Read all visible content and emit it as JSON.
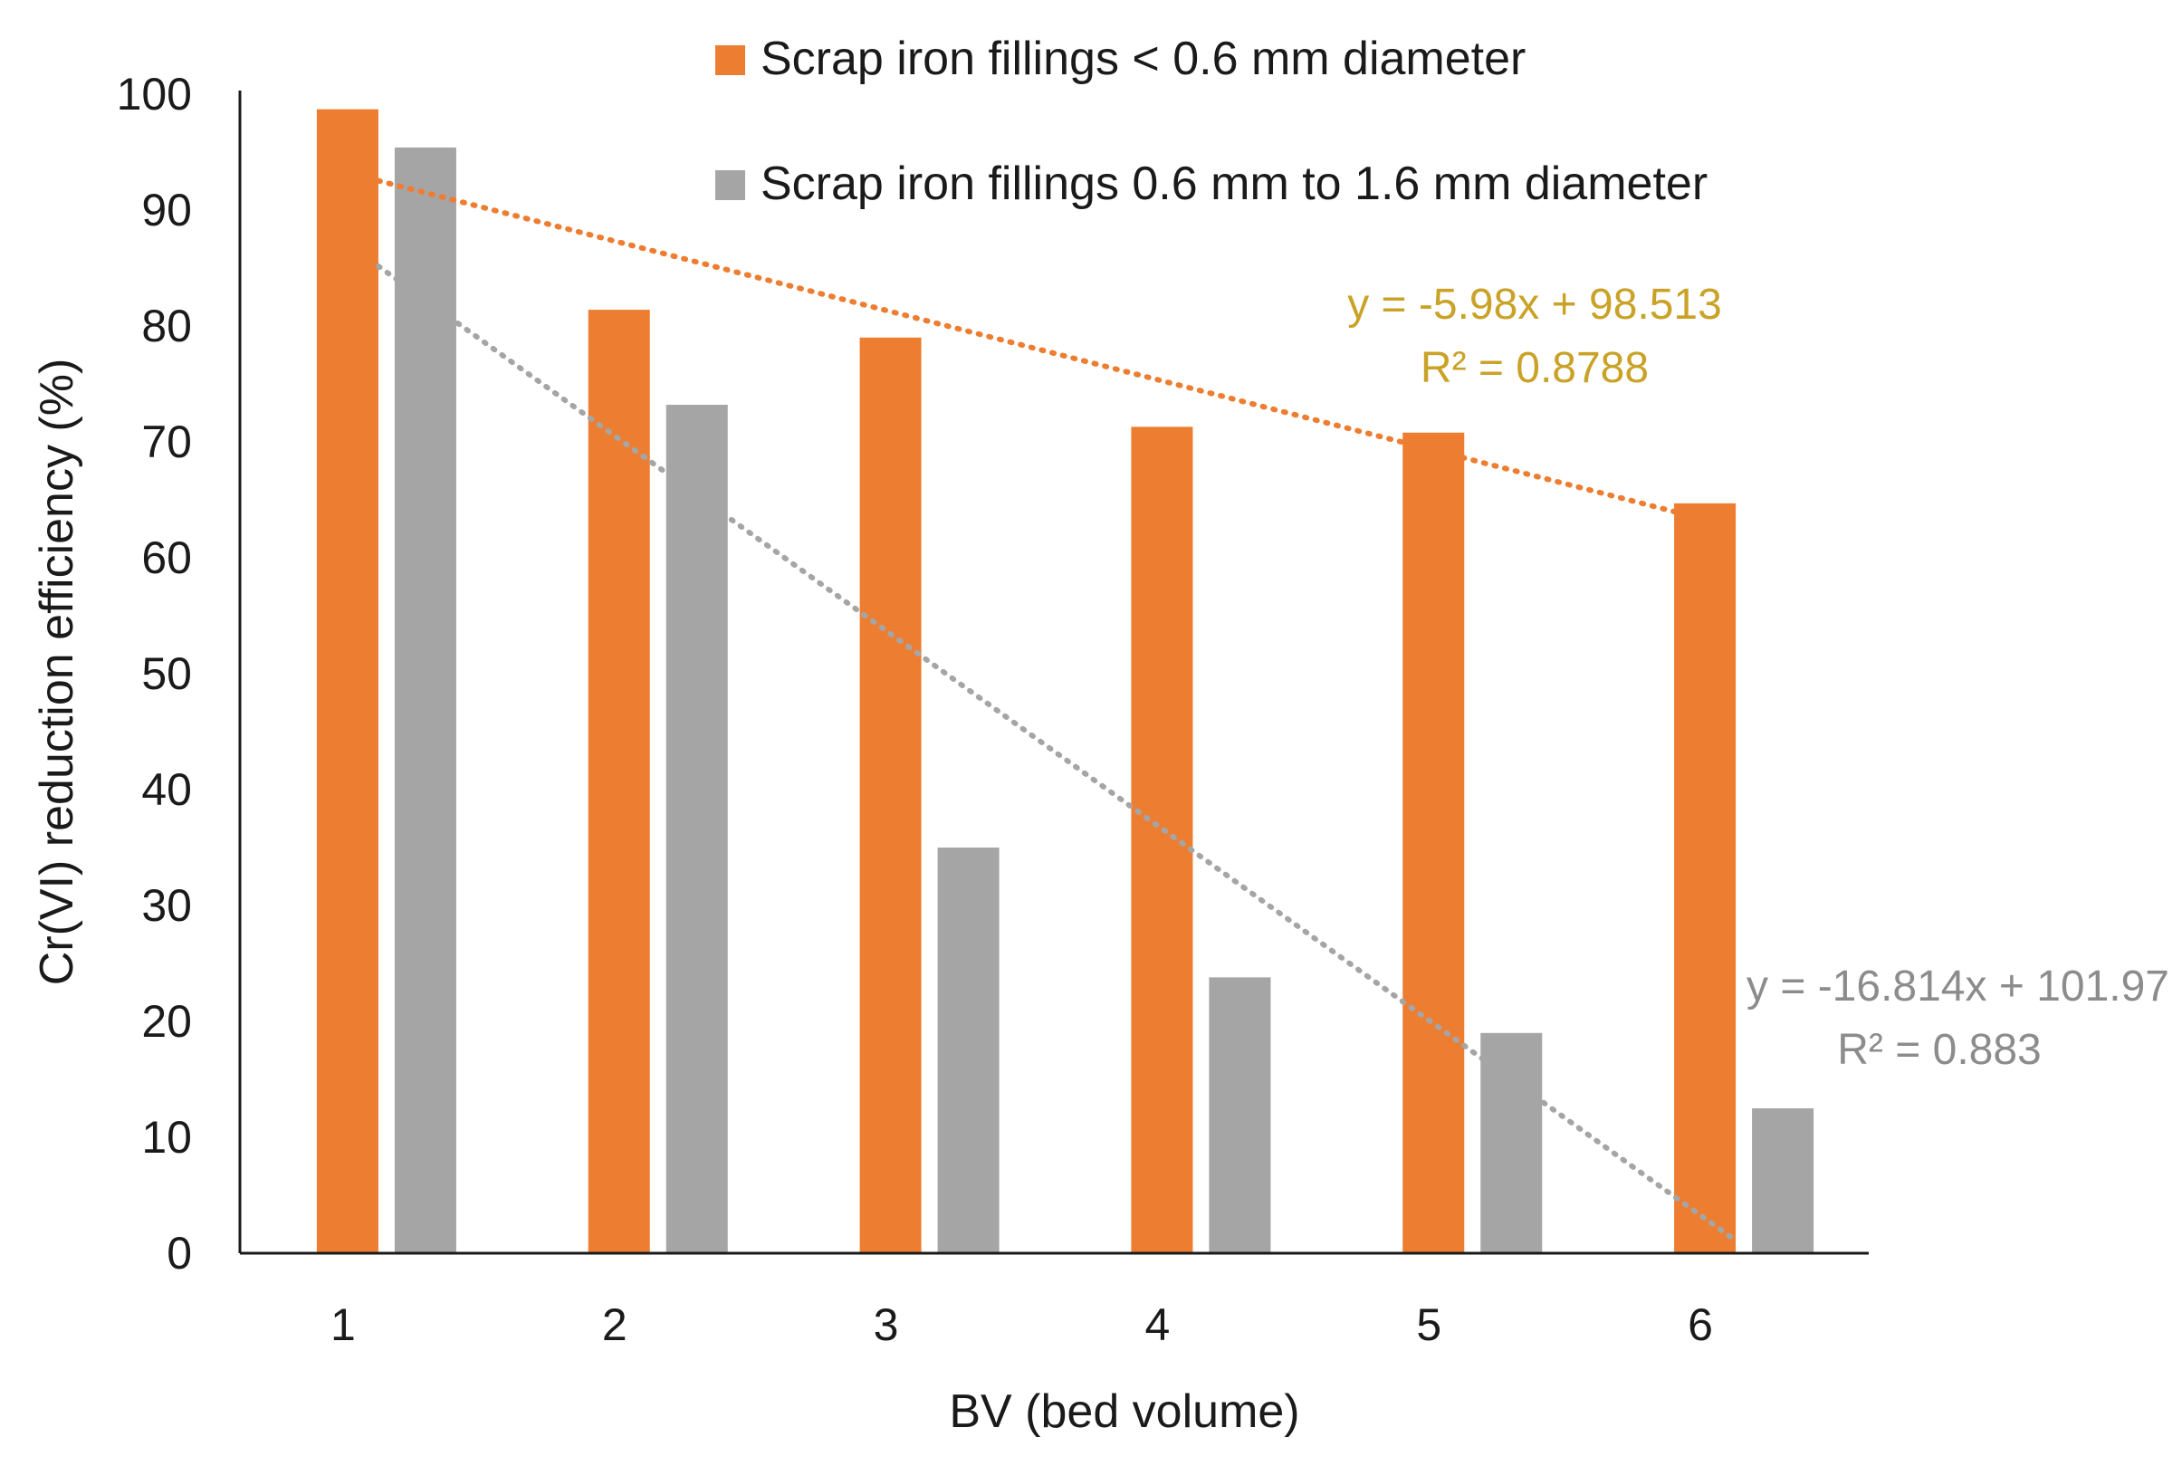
{
  "chart_data": {
    "type": "bar",
    "categories": [
      "1",
      "2",
      "3",
      "4",
      "5",
      "6"
    ],
    "xlabel": "BV (bed volume)",
    "ylabel": "Cr(VI)  reduction efficiency (%)",
    "ylim": [
      0,
      100
    ],
    "yticks": [
      "0",
      "10",
      "20",
      "30",
      "40",
      "50",
      "60",
      "70",
      "80",
      "90",
      "100"
    ],
    "grid": false,
    "legend_position": "top-center",
    "series": [
      {
        "name": "Scrap iron fillings < 0.6 mm diameter",
        "color": "#ED7D31",
        "values": [
          98.7,
          81.4,
          79.0,
          71.3,
          70.8,
          64.7
        ],
        "trendline": {
          "slope": -5.98,
          "intercept": 98.513,
          "equation": "y = -5.98x + 98.513",
          "r2": "R² = 0.8788",
          "line_color": "#ED7D31",
          "label_color": "#C9A227"
        }
      },
      {
        "name": "Scrap iron fillings 0.6 mm to 1.6 mm diameter",
        "color": "#A5A5A5",
        "values": [
          95.4,
          73.2,
          35.0,
          23.8,
          19.0,
          12.5
        ],
        "trendline": {
          "slope": -16.814,
          "intercept": 101.97,
          "equation": "y = -16.814x + 101.97",
          "r2": "R² = 0.883",
          "line_color": "#A5A5A5",
          "label_color": "#8C8C8C"
        }
      }
    ]
  }
}
